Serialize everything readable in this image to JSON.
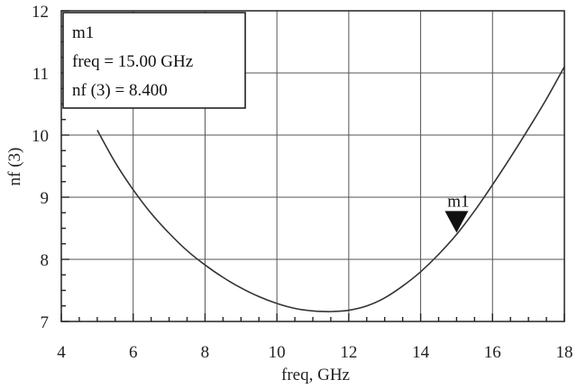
{
  "chart_data": {
    "type": "line",
    "xlabel": "freq, GHz",
    "ylabel": "nf (3)",
    "xlim": [
      4,
      18
    ],
    "ylim": [
      7,
      12
    ],
    "x_ticks": [
      4,
      6,
      8,
      10,
      12,
      14,
      16,
      18
    ],
    "y_ticks": [
      7,
      8,
      9,
      10,
      11,
      12
    ],
    "grid": true,
    "series": [
      {
        "x": [
          5.0,
          5.5,
          6.0,
          6.5,
          7.0,
          7.5,
          8.0,
          8.5,
          9.0,
          9.5,
          10.0,
          10.5,
          11.0,
          11.5,
          12.0,
          12.5,
          13.0,
          13.5,
          14.0,
          14.5,
          15.0,
          15.5,
          16.0,
          16.5,
          17.0,
          17.5,
          18.0
        ],
        "y": [
          10.08,
          9.56,
          9.12,
          8.74,
          8.42,
          8.14,
          7.91,
          7.71,
          7.54,
          7.4,
          7.29,
          7.21,
          7.17,
          7.16,
          7.18,
          7.25,
          7.38,
          7.57,
          7.8,
          8.08,
          8.4,
          8.78,
          9.2,
          9.64,
          10.1,
          10.58,
          11.1
        ]
      }
    ],
    "marker": {
      "name": "m1",
      "x": 15.0,
      "y": 8.4
    },
    "legend_box": {
      "title": "m1",
      "lines": [
        "freq = 15.00 GHz",
        "nf (3) = 8.400"
      ],
      "position": "top-left"
    }
  }
}
